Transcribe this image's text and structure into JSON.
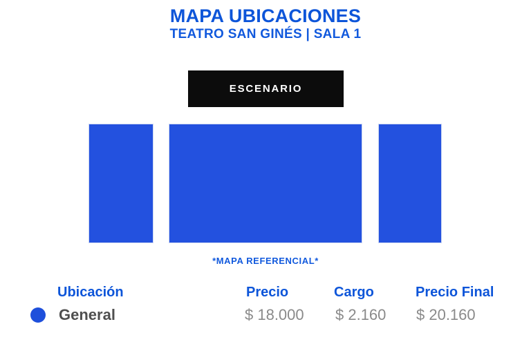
{
  "header": {
    "title": "MAPA UBICACIONES",
    "subtitle": "TEATRO SAN GINÉS | SALA 1"
  },
  "stage": {
    "label": "ESCENARIO"
  },
  "map": {
    "note": "*MAPA REFERENCIAL*",
    "sections": [
      {
        "name": "left-block"
      },
      {
        "name": "center-block"
      },
      {
        "name": "right-block"
      }
    ]
  },
  "pricing": {
    "columns": [
      "Ubicación",
      "Precio",
      "Cargo",
      "Precio Final"
    ],
    "rows": [
      {
        "ubicacion": "General",
        "precio": "$ 18.000",
        "cargo": "$ 2.160",
        "precio_final": "$ 20.160"
      }
    ]
  },
  "colors": {
    "accent_blue": "#0d55d9",
    "block_blue": "#2351df",
    "dot_blue": "#1e4fdb",
    "stage_black": "#0c0c0c",
    "value_gray": "#8a8a8a",
    "location_gray": "#4f4f4f"
  }
}
